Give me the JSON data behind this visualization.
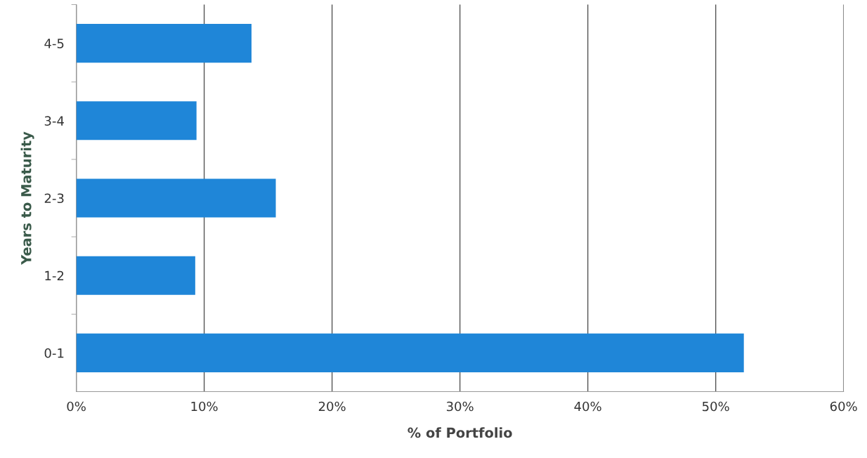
{
  "chart_data": {
    "type": "bar",
    "orientation": "horizontal",
    "xlabel": "% of Portfolio",
    "ylabel": "Years to Maturity",
    "categories": [
      "4-5",
      "3-4",
      "2-3",
      "1-2",
      "0-1"
    ],
    "values": [
      13.7,
      9.4,
      15.6,
      9.3,
      52.2
    ],
    "color": "#1f86d8",
    "xlim": [
      0,
      60
    ],
    "xticks": [
      {
        "value": 0,
        "label": "0%"
      },
      {
        "value": 10,
        "label": "10%"
      },
      {
        "value": 20,
        "label": "20%"
      },
      {
        "value": 30,
        "label": "30%"
      },
      {
        "value": 40,
        "label": "40%"
      },
      {
        "value": 50,
        "label": "50%"
      },
      {
        "value": 60,
        "label": "60%"
      }
    ],
    "grid": "x",
    "legend": false
  }
}
